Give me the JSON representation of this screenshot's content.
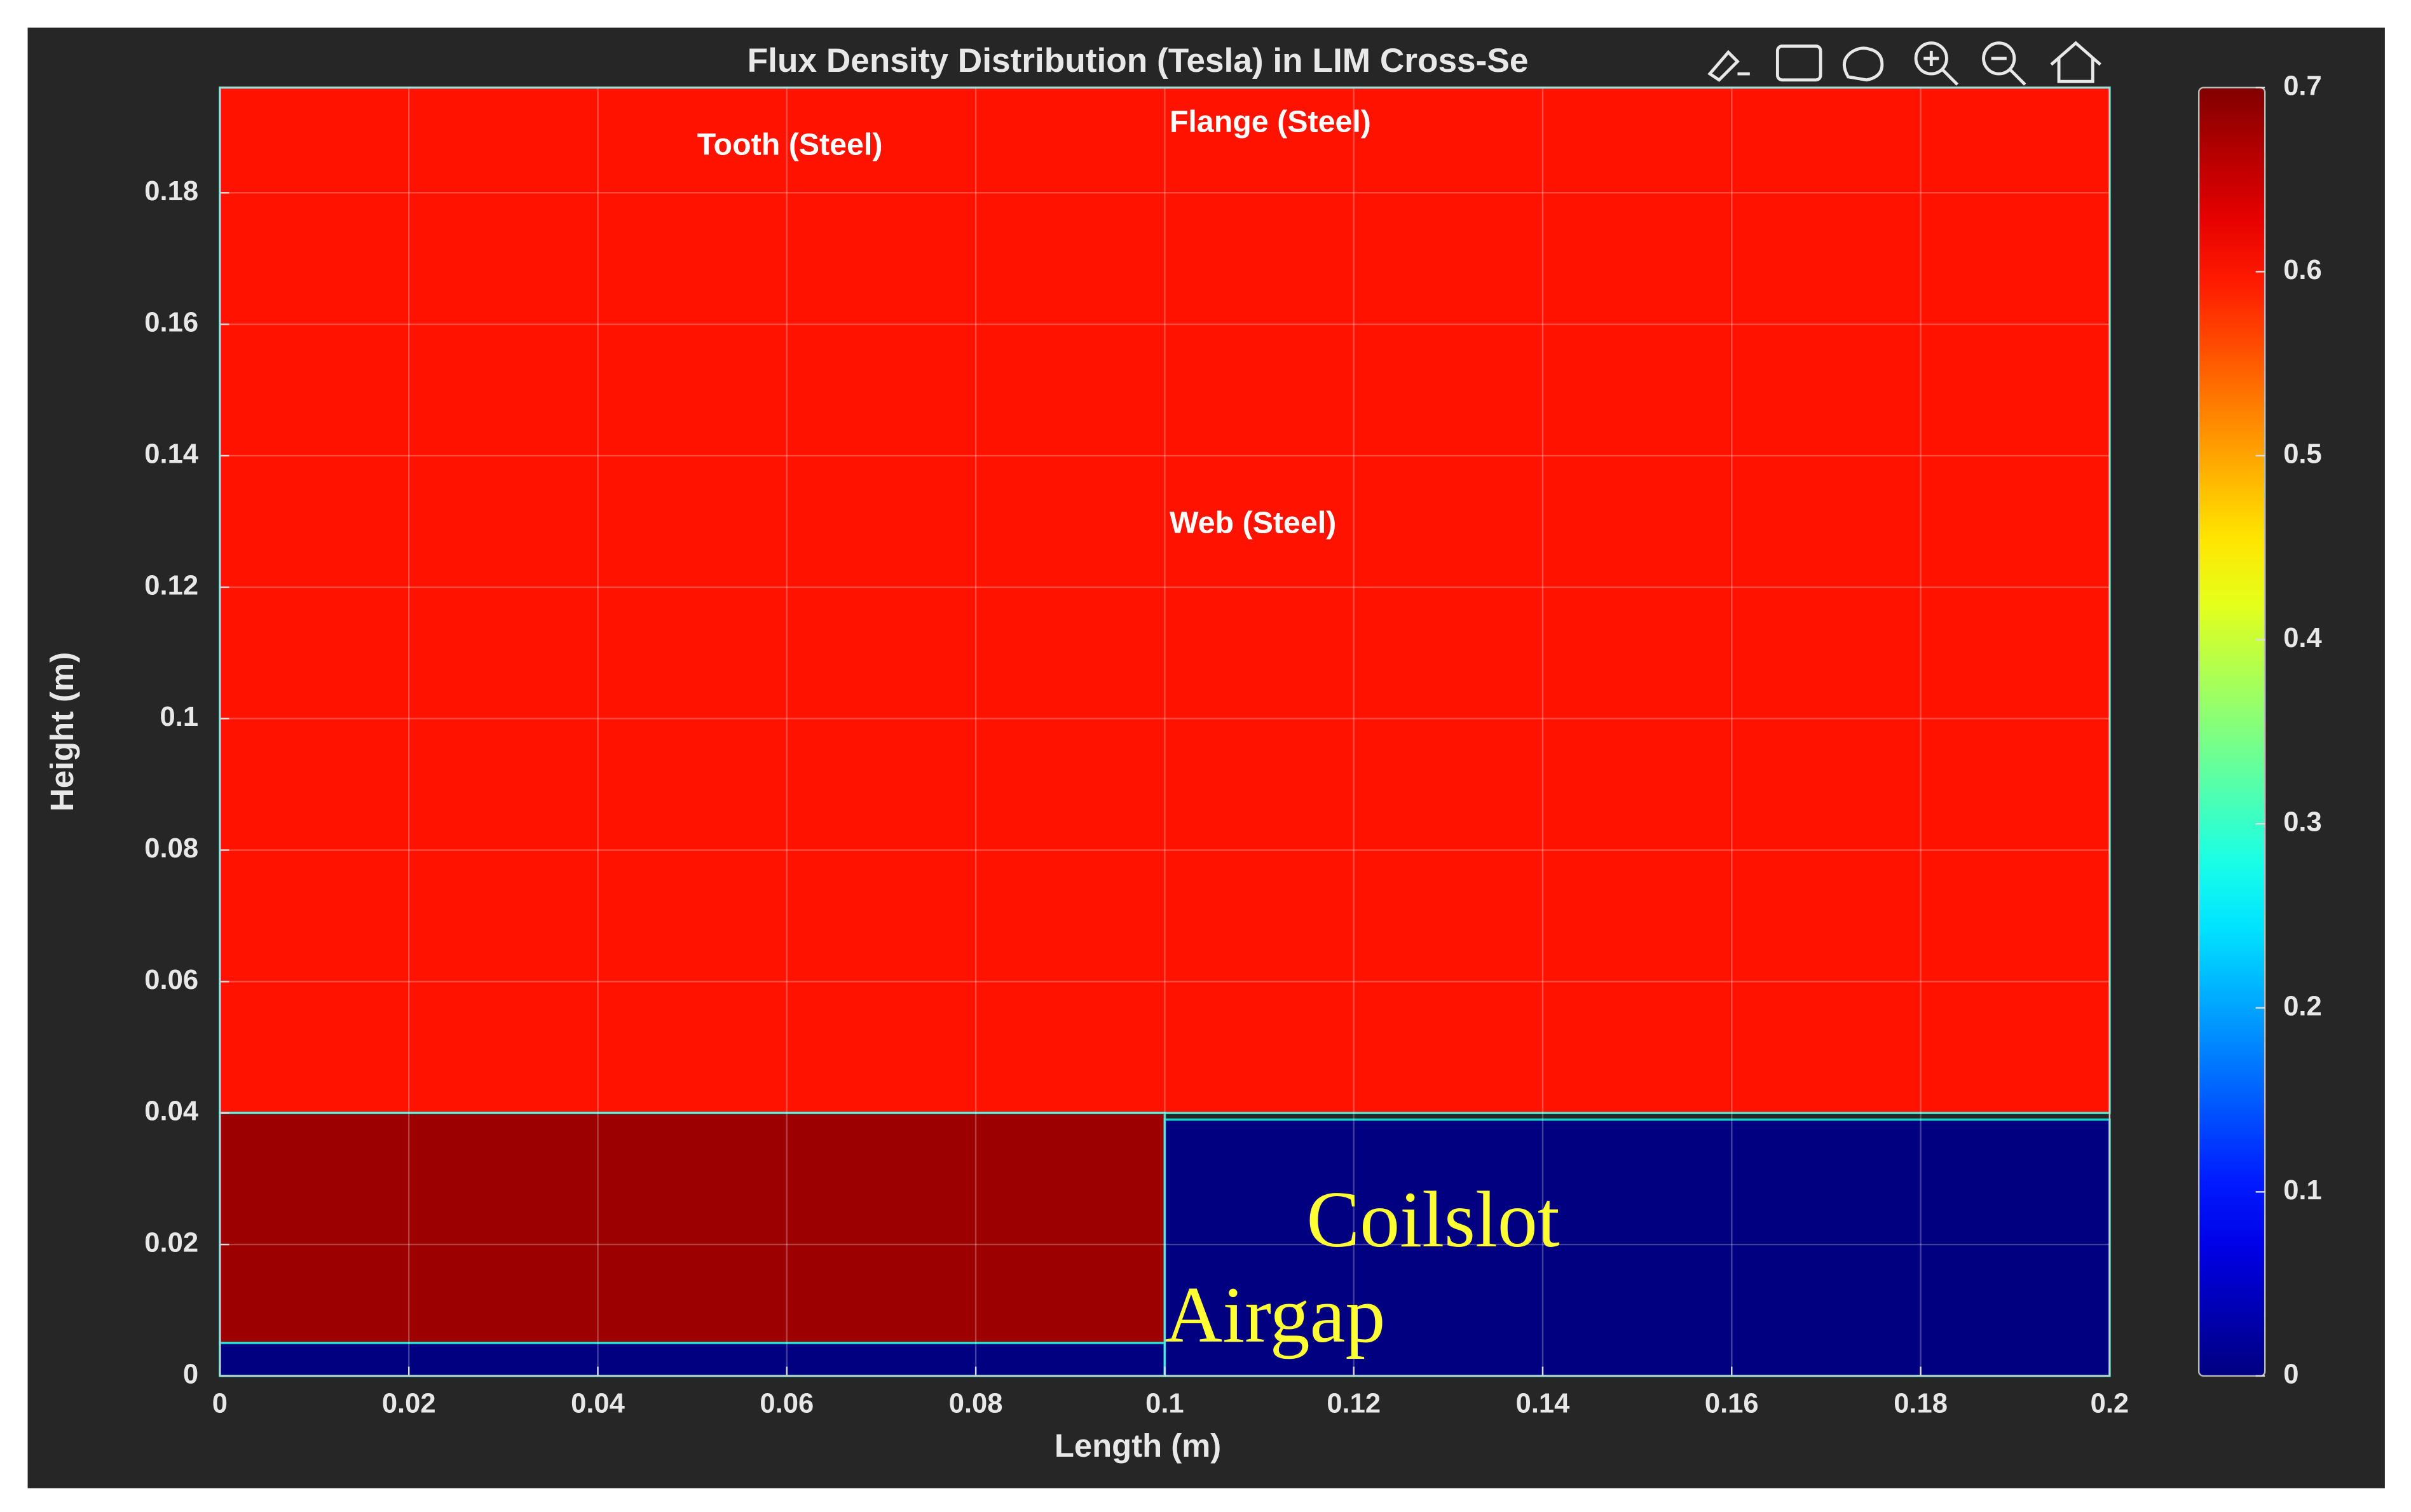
{
  "chart_data": {
    "type": "heatmap",
    "title": "Flux Density Distribution (Tesla) in LIM Cross-Se",
    "xlabel": "Length (m)",
    "ylabel": "Height (m)",
    "xlim": [
      0,
      0.2
    ],
    "ylim": [
      0,
      0.196
    ],
    "xticks": [
      0,
      0.02,
      0.04,
      0.06,
      0.08,
      0.1,
      0.12,
      0.14,
      0.16,
      0.18,
      0.2
    ],
    "yticks": [
      0,
      0.02,
      0.04,
      0.06,
      0.08,
      0.1,
      0.12,
      0.14,
      0.16,
      0.18
    ],
    "colormap": "jet",
    "clim": [
      0,
      0.7
    ],
    "cticks": [
      0,
      0.1,
      0.2,
      0.3,
      0.4,
      0.5,
      0.6,
      0.7
    ],
    "grid": true,
    "regions": [
      {
        "x": [
          0,
          0.2
        ],
        "y": [
          0.04,
          0.196
        ],
        "value": 0.6
      },
      {
        "x": [
          0,
          0.1
        ],
        "y": [
          0.005,
          0.04
        ],
        "value": 0.68
      },
      {
        "x": [
          0,
          0.1
        ],
        "y": [
          0,
          0.005
        ],
        "value": 0
      },
      {
        "x": [
          0.1,
          0.2
        ],
        "y": [
          0,
          0.039
        ],
        "value": 0
      }
    ],
    "annotations": [
      {
        "text": "Tooth (Steel)",
        "x": 0.0505,
        "y": 0.187,
        "style": "label"
      },
      {
        "text": "Flange (Steel)",
        "x": 0.1005,
        "y": 0.1905,
        "style": "label"
      },
      {
        "text": "Web (Steel)",
        "x": 0.1005,
        "y": 0.1295,
        "style": "label"
      },
      {
        "text": "Coilslot",
        "x": 0.115,
        "y": 0.0225,
        "style": "callout"
      },
      {
        "text": "Airgap",
        "x": 0.1,
        "y": 0.008,
        "style": "callout"
      }
    ]
  }
}
